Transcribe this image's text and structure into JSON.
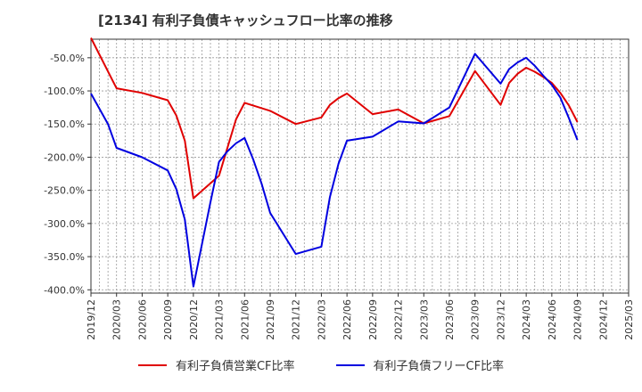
{
  "title": "[2134]  有利子負債キャッシュフロー比率の推移",
  "colors": {
    "series1": "#e00000",
    "series2": "#0000e0"
  },
  "chart_data": {
    "type": "line",
    "title": "[2134]  有利子負債キャッシュフロー比率の推移",
    "xlabel": "",
    "ylabel": "",
    "x_tick_labels": [
      "2019/12",
      "2020/03",
      "2020/06",
      "2020/09",
      "2020/12",
      "2021/03",
      "2021/06",
      "2021/09",
      "2021/12",
      "2022/03",
      "2022/06",
      "2022/09",
      "2022/12",
      "2023/03",
      "2023/06",
      "2023/09",
      "2023/12",
      "2024/03",
      "2024/06",
      "2024/09",
      "2024/12",
      "2025/03"
    ],
    "y_tick_labels": [
      "-50.0%",
      "-100.0%",
      "-150.0%",
      "-200.0%",
      "-250.0%",
      "-300.0%",
      "-350.0%",
      "-400.0%"
    ],
    "ylim": [
      -405,
      -22
    ],
    "grid": true,
    "legend_position": "bottom",
    "series": [
      {
        "name": "有利子負債営業CF比率",
        "points": [
          [
            "2019/12",
            -20
          ],
          [
            "2020/03",
            -96
          ],
          [
            "2020/06",
            -103
          ],
          [
            "2020/09",
            -114
          ],
          [
            "2020/10",
            -137
          ],
          [
            "2020/11",
            -175
          ],
          [
            "2020/12",
            -262
          ],
          [
            "2021/03",
            -228
          ],
          [
            "2021/05",
            -143
          ],
          [
            "2021/06",
            -118
          ],
          [
            "2021/09",
            -130
          ],
          [
            "2021/12",
            -150
          ],
          [
            "2022/03",
            -140
          ],
          [
            "2022/04",
            -121
          ],
          [
            "2022/05",
            -111
          ],
          [
            "2022/06",
            -104
          ],
          [
            "2022/09",
            -135
          ],
          [
            "2022/12",
            -128
          ],
          [
            "2023/03",
            -149
          ],
          [
            "2023/06",
            -138
          ],
          [
            "2023/09",
            -70
          ],
          [
            "2023/12",
            -121
          ],
          [
            "2024/01",
            -88
          ],
          [
            "2024/02",
            -74
          ],
          [
            "2024/03",
            -65
          ],
          [
            "2024/04",
            -71
          ],
          [
            "2024/05",
            -79
          ],
          [
            "2024/06",
            -88
          ],
          [
            "2024/07",
            -103
          ],
          [
            "2024/08",
            -122
          ],
          [
            "2024/09",
            -147
          ]
        ]
      },
      {
        "name": "有利子負債フリーCF比率",
        "points": [
          [
            "2019/12",
            -104
          ],
          [
            "2020/02",
            -150
          ],
          [
            "2020/03",
            -186
          ],
          [
            "2020/06",
            -200
          ],
          [
            "2020/09",
            -220
          ],
          [
            "2020/10",
            -248
          ],
          [
            "2020/11",
            -294
          ],
          [
            "2020/12",
            -395
          ],
          [
            "2021/02",
            -268
          ],
          [
            "2021/03",
            -207
          ],
          [
            "2021/04",
            -191
          ],
          [
            "2021/05",
            -179
          ],
          [
            "2021/06",
            -171
          ],
          [
            "2021/07",
            -203
          ],
          [
            "2021/08",
            -240
          ],
          [
            "2021/09",
            -284
          ],
          [
            "2021/12",
            -346
          ],
          [
            "2022/03",
            -335
          ],
          [
            "2022/04",
            -260
          ],
          [
            "2022/05",
            -210
          ],
          [
            "2022/06",
            -175
          ],
          [
            "2022/09",
            -169
          ],
          [
            "2022/12",
            -146
          ],
          [
            "2023/03",
            -149
          ],
          [
            "2023/06",
            -125
          ],
          [
            "2023/09",
            -44
          ],
          [
            "2023/12",
            -89
          ],
          [
            "2024/01",
            -67
          ],
          [
            "2024/02",
            -57
          ],
          [
            "2024/03",
            -50
          ],
          [
            "2024/04",
            -62
          ],
          [
            "2024/05",
            -77
          ],
          [
            "2024/06",
            -91
          ],
          [
            "2024/07",
            -110
          ],
          [
            "2024/08",
            -141
          ],
          [
            "2024/09",
            -174
          ]
        ]
      }
    ]
  }
}
